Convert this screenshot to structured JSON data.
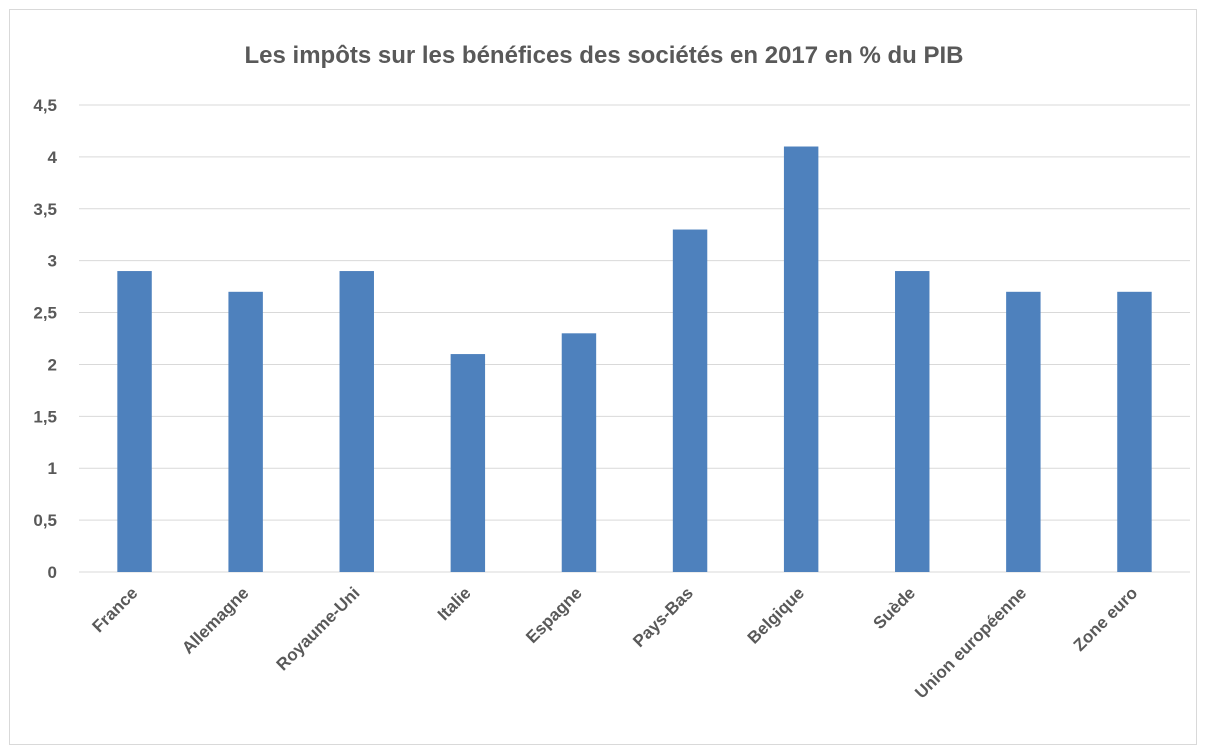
{
  "chart_data": {
    "type": "bar",
    "title": "Les impôts sur les bénéfices des sociétés en 2017 en % du PIB",
    "categories": [
      "France",
      "Allemagne",
      "Royaume-Uni",
      "Italie",
      "Espagne",
      "Pays-Bas",
      "Belgique",
      "Suède",
      "Union européenne",
      "Zone euro"
    ],
    "series": [
      {
        "values": [
          2.9,
          2.7,
          2.9,
          2.1,
          2.3,
          3.3,
          4.1,
          2.9,
          2.7,
          2.7
        ]
      }
    ],
    "xlabel": "",
    "ylabel": "",
    "ylim": [
      0,
      4.5
    ],
    "yticks": [
      0,
      0.5,
      1,
      1.5,
      2,
      2.5,
      3,
      3.5,
      4,
      4.5
    ],
    "ytick_labels": [
      "0",
      "0,5",
      "1",
      "1,5",
      "2",
      "2,5",
      "3",
      "3,5",
      "4",
      "4,5"
    ],
    "grid": true,
    "legend": "none",
    "bar_color": "#4e81bd",
    "gridline_color": "#d9d9d9"
  }
}
